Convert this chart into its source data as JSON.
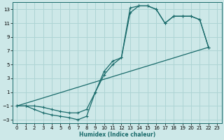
{
  "xlabel": "Humidex (Indice chaleur)",
  "bg_color": "#cde8e8",
  "line_color": "#1a6b6b",
  "grid_color": "#aed4d4",
  "xlim": [
    -0.5,
    23.5
  ],
  "ylim": [
    -3.5,
    14.0
  ],
  "xticks": [
    0,
    1,
    2,
    3,
    4,
    5,
    6,
    7,
    8,
    9,
    10,
    11,
    12,
    13,
    14,
    15,
    16,
    17,
    18,
    19,
    20,
    21,
    22,
    23
  ],
  "yticks": [
    -3,
    -1,
    1,
    3,
    5,
    7,
    9,
    11,
    13
  ],
  "line1_x": [
    0,
    1,
    2,
    3,
    4,
    5,
    6,
    7,
    8,
    9,
    10,
    11,
    12,
    13,
    14,
    15,
    16,
    17,
    18,
    19,
    20,
    21,
    22
  ],
  "line1_y": [
    -1,
    -1,
    -1.5,
    -2,
    -2.3,
    -2.5,
    -2.7,
    -3,
    -2.5,
    1,
    4,
    5.5,
    6,
    13.2,
    13.5,
    13.5,
    13,
    11,
    12,
    12,
    12,
    11.5,
    7.5
  ],
  "line2_x": [
    0,
    1,
    2,
    3,
    4,
    5,
    6,
    7,
    8,
    9,
    10,
    11,
    12,
    13,
    14,
    15,
    16,
    17,
    18,
    19,
    20,
    21,
    22
  ],
  "line2_y": [
    -1,
    -1,
    -1,
    -1.2,
    -1.5,
    -1.8,
    -2,
    -2,
    -1.5,
    1,
    3.5,
    5,
    6,
    12.5,
    13.5,
    13.5,
    13,
    11,
    12,
    12,
    12,
    11.5,
    7.5
  ],
  "line3_x": [
    0,
    22
  ],
  "line3_y": [
    -1,
    7.5
  ],
  "xlabel_fontsize": 5.5,
  "tick_fontsize": 5.0
}
